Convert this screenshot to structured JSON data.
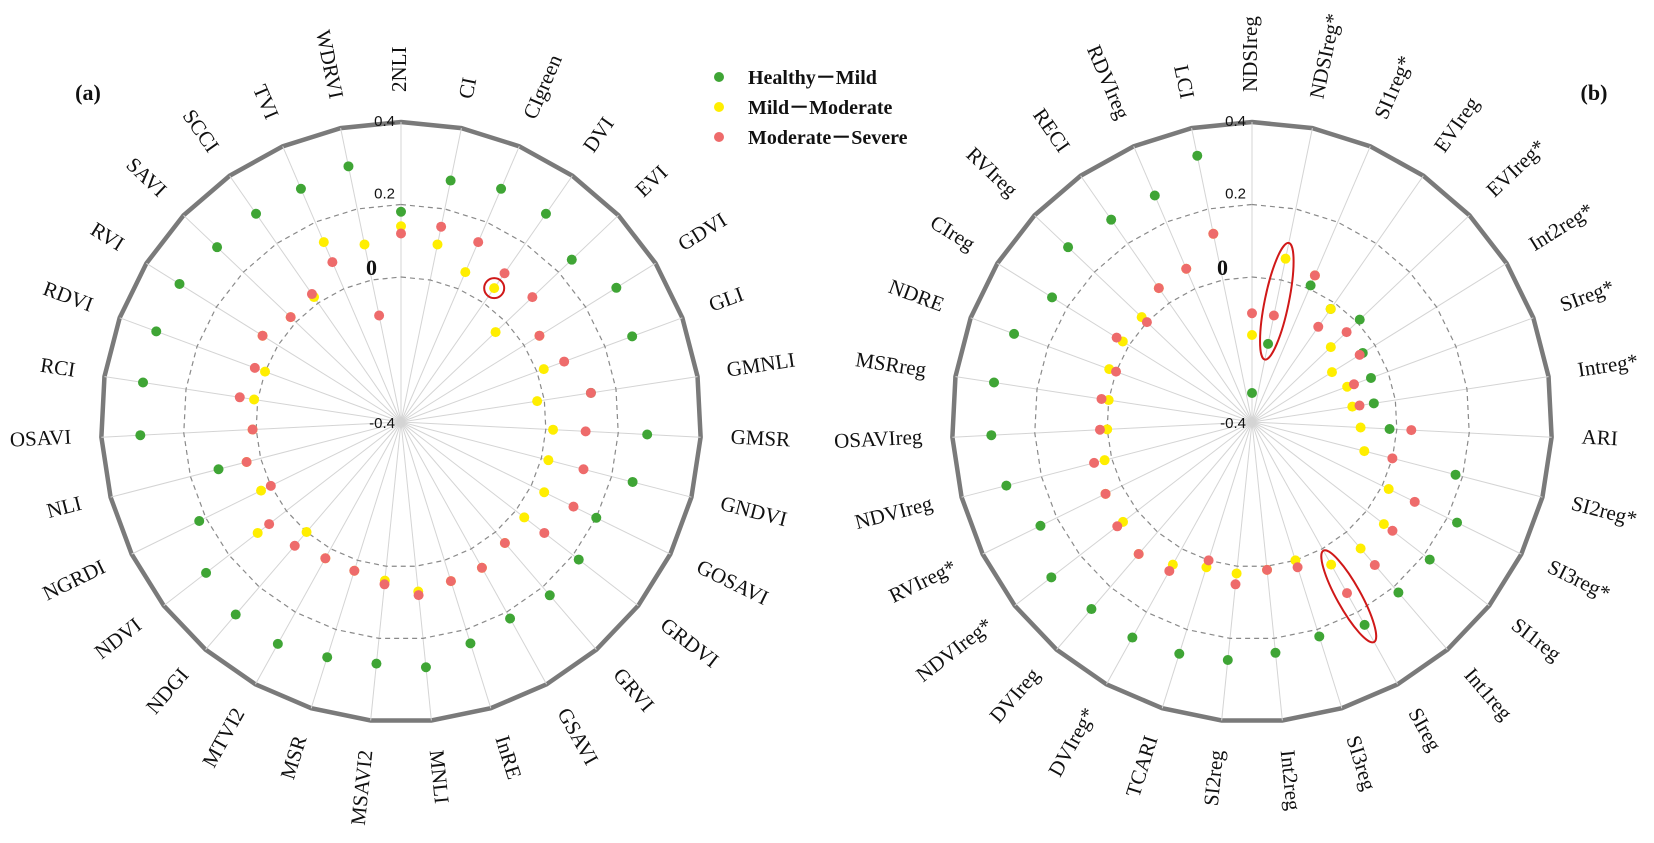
{
  "chart_data": [
    {
      "type": "radar",
      "panel_label": "(a)",
      "rlim": [
        -0.4,
        0.4
      ],
      "tick_labels": [
        "-0.4",
        "0",
        "0.2",
        "0.4"
      ],
      "categories": [
        "2NLI",
        "CI",
        "CIgreen",
        "DVI",
        "EVI",
        "GDVI",
        "GLI",
        "GMNLI",
        "GMSR",
        "GNDVI",
        "GOSAVI",
        "GRDVI",
        "GRVI",
        "GSAVI",
        "InRE",
        "MNLI",
        "MSAVI2",
        "MSR",
        "MTVI2",
        "NDGI",
        "NDVI",
        "NGRDI",
        "NLI",
        "OSAVI",
        "RCI",
        "RDVI",
        "RVI",
        "SAVI",
        "SCCI",
        "TVI",
        "WDRVI"
      ],
      "series": [
        {
          "name": "Healthy－Mild",
          "color": "#3fa535",
          "values": [
            0.18,
            0.28,
            0.3,
            0.3,
            0.25,
            0.3,
            0.28,
            0.13,
            0.28,
            0.26,
            0.2,
            0.22,
            0.23,
            0.22,
            0.24,
            0.28,
            0.27,
            0.28,
            0.3,
            0.3,
            0.28,
            0.22,
            0.12,
            0.32,
            0.32,
            0.32,
            0.32,
            0.3,
            0.3,
            0.3,
            0.32
          ]
        },
        {
          "name": "Mild－Moderate",
          "color": "#ffee00",
          "values": [
            0.14,
            0.1,
            0.05,
            0.05,
            -0.04,
            0.05,
            0.02,
            -0.02,
            0.02,
            0.02,
            0.04,
            0.03,
            0.04,
            0.06,
            0.06,
            0.07,
            0.04,
            0.03,
            0.03,
            0.0,
            0.1,
            0.03,
            0.04,
            0.01,
            0.01,
            0.0,
            0.05,
            0.02,
            0.02,
            0.14,
            0.1
          ]
        },
        {
          "name": "Moderate－Severe",
          "color": "#ee6b6b",
          "values": [
            0.12,
            0.15,
            0.14,
            0.1,
            0.1,
            0.05,
            0.08,
            0.13,
            0.11,
            0.12,
            0.13,
            0.1,
            0.04,
            0.06,
            0.06,
            0.08,
            0.05,
            0.03,
            0.03,
            0.05,
            0.06,
            0.0,
            0.04,
            0.01,
            0.05,
            0.03,
            0.05,
            0.02,
            0.03,
            0.08,
            -0.1
          ]
        }
      ],
      "highlights": [
        {
          "category": "DVI",
          "value": 0.05,
          "shape": "circle"
        }
      ]
    },
    {
      "type": "radar",
      "panel_label": "(b)",
      "rlim": [
        -0.4,
        0.4
      ],
      "tick_labels": [
        "-0.4",
        "0",
        "0.2",
        "0.4"
      ],
      "categories": [
        "NDSIreg",
        "NDSIreg*",
        "SI1reg*",
        "EVIreg",
        "EVIreg*",
        "Int2reg*",
        "SIreg*",
        "Intreg*",
        "ARI",
        "SI2reg*",
        "SI3reg*",
        "SI1reg",
        "Int1reg",
        "SIreg",
        "SI3reg",
        "Int2reg",
        "SI2reg",
        "TCARI",
        "DVIreg*",
        "DVIreg",
        "NDVIreg*",
        "RVIreg*",
        "NDVIreg",
        "OSAVIreg",
        "MSRreg",
        "NDRE",
        "CIreg",
        "RVIreg",
        "RECI",
        "RDVIreg",
        "LCI"
      ],
      "series": [
        {
          "name": "Healthy－Mild",
          "color": "#3fa535",
          "values": [
            -0.32,
            -0.18,
            0.01,
            -0.02,
            0.01,
            -0.04,
            -0.05,
            -0.06,
            -0.02,
            0.18,
            0.23,
            0.22,
            0.22,
            0.24,
            0.22,
            0.24,
            0.26,
            0.27,
            0.28,
            0.28,
            0.3,
            0.25,
            0.3,
            0.32,
            0.32,
            0.3,
            0.25,
            0.3,
            0.28,
            0.28,
            0.35
          ]
        },
        {
          "name": "Mild－Moderate",
          "color": "#ffee00",
          "values": [
            -0.16,
            0.06,
            0.04,
            -0.02,
            -0.1,
            -0.14,
            -0.12,
            -0.12,
            -0.1,
            -0.08,
            0.02,
            0.06,
            0.06,
            0.05,
            0.0,
            0.01,
            0.02,
            0.02,
            0.05,
            0.08,
            0.05,
            0.05,
            0.02,
            0.0,
            0.0,
            0.02,
            0.02,
            0.02,
            0.05,
            0.06,
            0.13
          ]
        },
        {
          "name": "Moderate－Severe",
          "color": "#ee6b6b",
          "values": [
            -0.1,
            -0.1,
            0.04,
            -0.08,
            -0.04,
            -0.05,
            -0.1,
            -0.1,
            0.04,
            0.0,
            0.1,
            0.09,
            0.12,
            0.14,
            0.02,
            0.01,
            0.05,
            0.0,
            0.07,
            0.08,
            0.07,
            0.05,
            0.05,
            0.02,
            0.02,
            0.0,
            0.04,
            0.0,
            0.05,
            0.06,
            0.13
          ]
        }
      ],
      "highlights": [
        {
          "category": "NDSIreg*",
          "from": -0.18,
          "to": 0.06,
          "shape": "ellipse"
        },
        {
          "category": "SIreg",
          "from": 0.05,
          "to": 0.25,
          "shape": "ellipse"
        }
      ]
    }
  ],
  "legend": {
    "position": "top-center",
    "items": [
      {
        "label": "Healthy－Mild",
        "color": "#3fa535"
      },
      {
        "label": "Mild－Moderate",
        "color": "#ffee00"
      },
      {
        "label": "Moderate－Severe",
        "color": "#ee6b6b"
      }
    ]
  }
}
